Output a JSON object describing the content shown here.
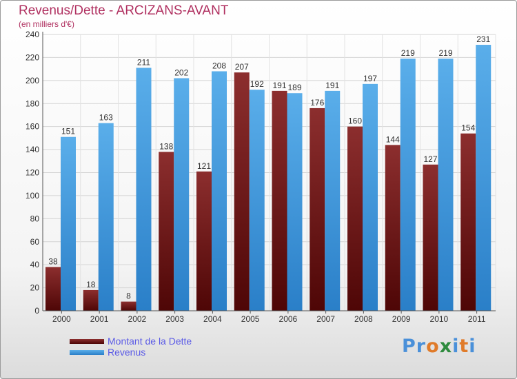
{
  "header": {
    "title": "Revenus/Dette - ARCIZANS-AVANT",
    "subtitle": "(en milliers d'€)"
  },
  "brand": {
    "text": "Proxiti",
    "letters": [
      "P",
      "r",
      "o",
      "x",
      "i",
      "t",
      "i"
    ],
    "letter_colors": [
      "#4a90d9",
      "#4a90d9",
      "#e07b2a",
      "#2e8b3e",
      "#4a90d9",
      "#e07b2a",
      "#4a90d9"
    ]
  },
  "chart_data": {
    "type": "bar",
    "categories": [
      "2000",
      "2001",
      "2002",
      "2003",
      "2004",
      "2005",
      "2006",
      "2007",
      "2008",
      "2009",
      "2010",
      "2011"
    ],
    "series": [
      {
        "name": "Montant de la Dette",
        "color": "#6b1a1a",
        "values": [
          38,
          18,
          8,
          138,
          121,
          207,
          191,
          176,
          160,
          144,
          127,
          154
        ]
      },
      {
        "name": "Revenus",
        "color": "#4a9fe0",
        "values": [
          151,
          163,
          211,
          202,
          208,
          192,
          189,
          191,
          197,
          219,
          219,
          231
        ]
      }
    ],
    "title": "Revenus/Dette - ARCIZANS-AVANT",
    "ylim": [
      0,
      240
    ],
    "y_ticks": [
      0,
      20,
      40,
      60,
      80,
      100,
      120,
      140,
      160,
      180,
      200,
      220,
      240
    ],
    "grid": true,
    "legend": "bottom-left"
  }
}
